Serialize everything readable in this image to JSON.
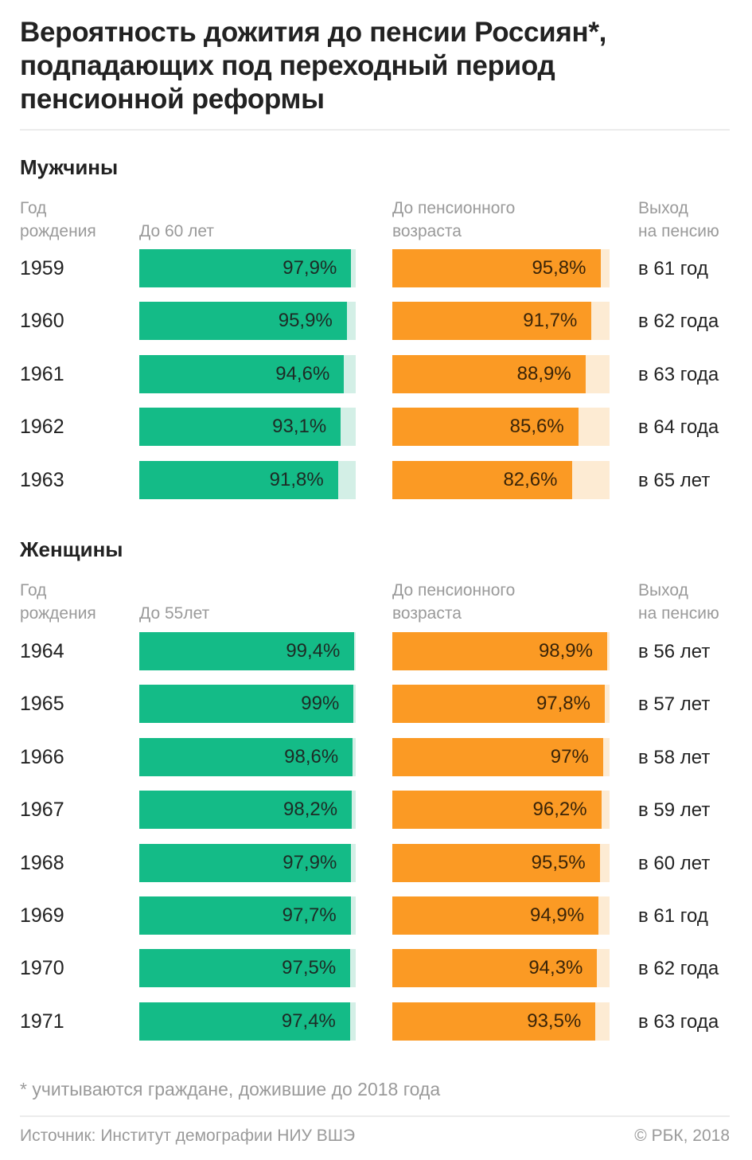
{
  "chart_data": {
    "type": "bar",
    "title": "Вероятность дожития до пенсии Россиян*, подпадающих под переходный период пенсионной реформы",
    "value_unit": "%",
    "xlim": [
      0,
      100
    ],
    "colors": {
      "green": "#14bb87",
      "green_track": "#d3efe6",
      "orange": "#fb9a24",
      "orange_track": "#fdebd3"
    },
    "groups": [
      {
        "name": "Мужчины",
        "headers": {
          "year": [
            "Год",
            "рождения"
          ],
          "series1": [
            "",
            "До 60 лет"
          ],
          "series2": [
            "До пенсионного",
            "возраста"
          ],
          "retire": [
            "Выход",
            "на пенсию"
          ]
        },
        "categories": [
          "1959",
          "1960",
          "1961",
          "1962",
          "1963"
        ],
        "series": [
          {
            "name": "До 60 лет",
            "values": [
              97.9,
              95.9,
              94.6,
              93.1,
              91.8
            ],
            "labels": [
              "97,9%",
              "95,9%",
              "94,6%",
              "93,1%",
              "91,8%"
            ]
          },
          {
            "name": "До пенсионного возраста",
            "values": [
              95.8,
              91.7,
              88.9,
              85.6,
              82.6
            ],
            "labels": [
              "95,8%",
              "91,7%",
              "88,9%",
              "85,6%",
              "82,6%"
            ]
          }
        ],
        "retirement": [
          "в 61 год",
          "в 62 года",
          "в 63 года",
          "в 64 года",
          "в 65 лет"
        ]
      },
      {
        "name": "Женщины",
        "headers": {
          "year": [
            "Год",
            "рождения"
          ],
          "series1": [
            "",
            "До 55лет"
          ],
          "series2": [
            "До пенсионного",
            "возраста"
          ],
          "retire": [
            "Выход",
            "на пенсию"
          ]
        },
        "categories": [
          "1964",
          "1965",
          "1966",
          "1967",
          "1968",
          "1969",
          "1970",
          "1971"
        ],
        "series": [
          {
            "name": "До 55лет",
            "values": [
              99.4,
              99.0,
              98.6,
              98.2,
              97.9,
              97.7,
              97.5,
              97.4
            ],
            "labels": [
              "99,4%",
              "99%",
              "98,6%",
              "98,2%",
              "97,9%",
              "97,7%",
              "97,5%",
              "97,4%"
            ]
          },
          {
            "name": "До пенсионного возраста",
            "values": [
              98.9,
              97.8,
              97.0,
              96.2,
              95.5,
              94.9,
              94.3,
              93.5
            ],
            "labels": [
              "98,9%",
              "97,8%",
              "97%",
              "96,2%",
              "95,5%",
              "94,9%",
              "94,3%",
              "93,5%"
            ]
          }
        ],
        "retirement": [
          "в 56 лет",
          "в 57 лет",
          "в 58 лет",
          "в 59 лет",
          "в 60 лет",
          "в 61 год",
          "в 62 года",
          "в 63 года"
        ]
      }
    ]
  },
  "title": "Вероятность дожития до пенсии Россиян*, подпадающих под переходный период пенсионной реформы",
  "footnote": "* учитываются граждане, дожившие до 2018 года",
  "source": "Источник: Институт демографии НИУ ВШЭ",
  "copyright": "© РБК, 2018"
}
